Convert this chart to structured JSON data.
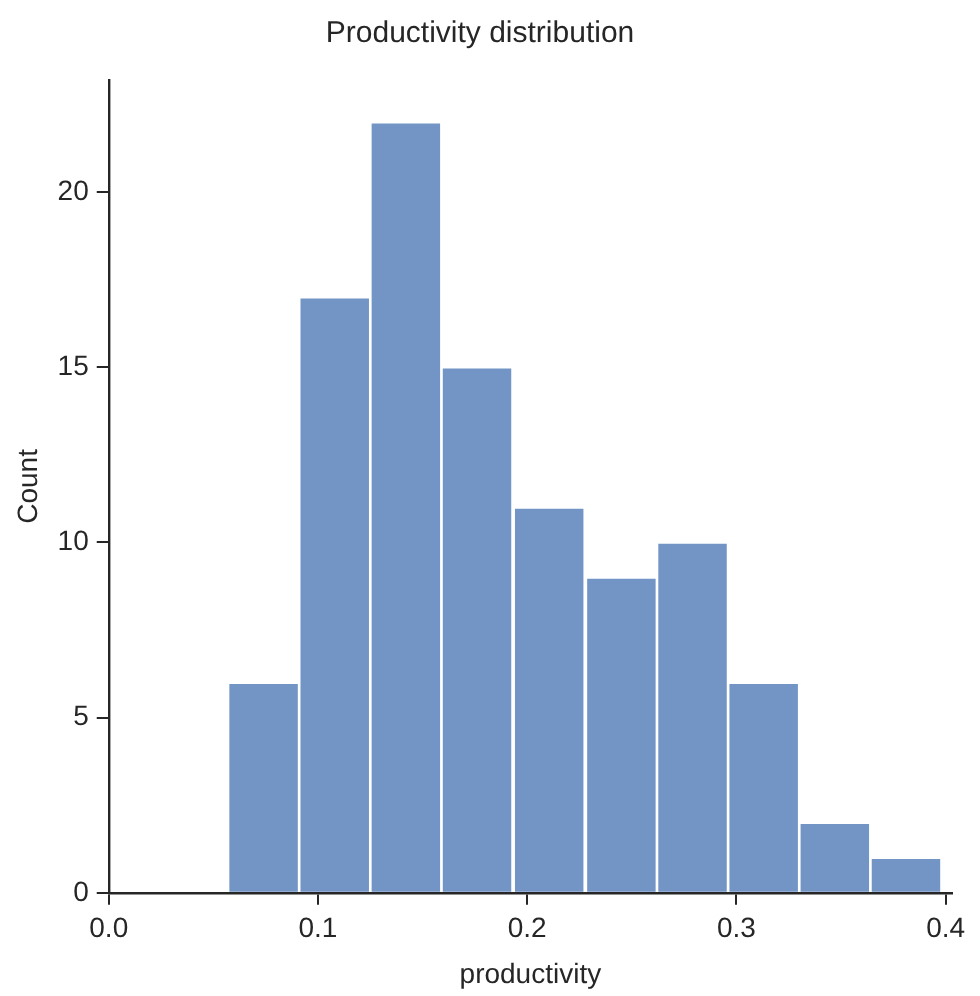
{
  "chart_data": {
    "type": "histogram",
    "title": "Productivity distribution",
    "xlabel": "productivity",
    "ylabel": "Count",
    "bins": [
      0.057,
      0.091,
      0.125,
      0.159,
      0.193,
      0.228,
      0.262,
      0.296,
      0.33,
      0.364,
      0.398
    ],
    "values": [
      6,
      17,
      22,
      15,
      11,
      9,
      10,
      6,
      2,
      1
    ],
    "color": "#7295c6",
    "xlim": [
      0,
      0.403
    ],
    "xticks": [
      {
        "value": 0,
        "label": "0.0"
      },
      {
        "value": 0.1,
        "label": "0.1"
      },
      {
        "value": 0.2,
        "label": "0.2"
      },
      {
        "value": 0.3,
        "label": "0.3"
      },
      {
        "value": 0.4,
        "label": "0.4"
      }
    ],
    "ylim": [
      0,
      23.2
    ],
    "yticks": [
      0,
      5,
      10,
      15,
      20
    ],
    "grid": false,
    "legend": false
  }
}
